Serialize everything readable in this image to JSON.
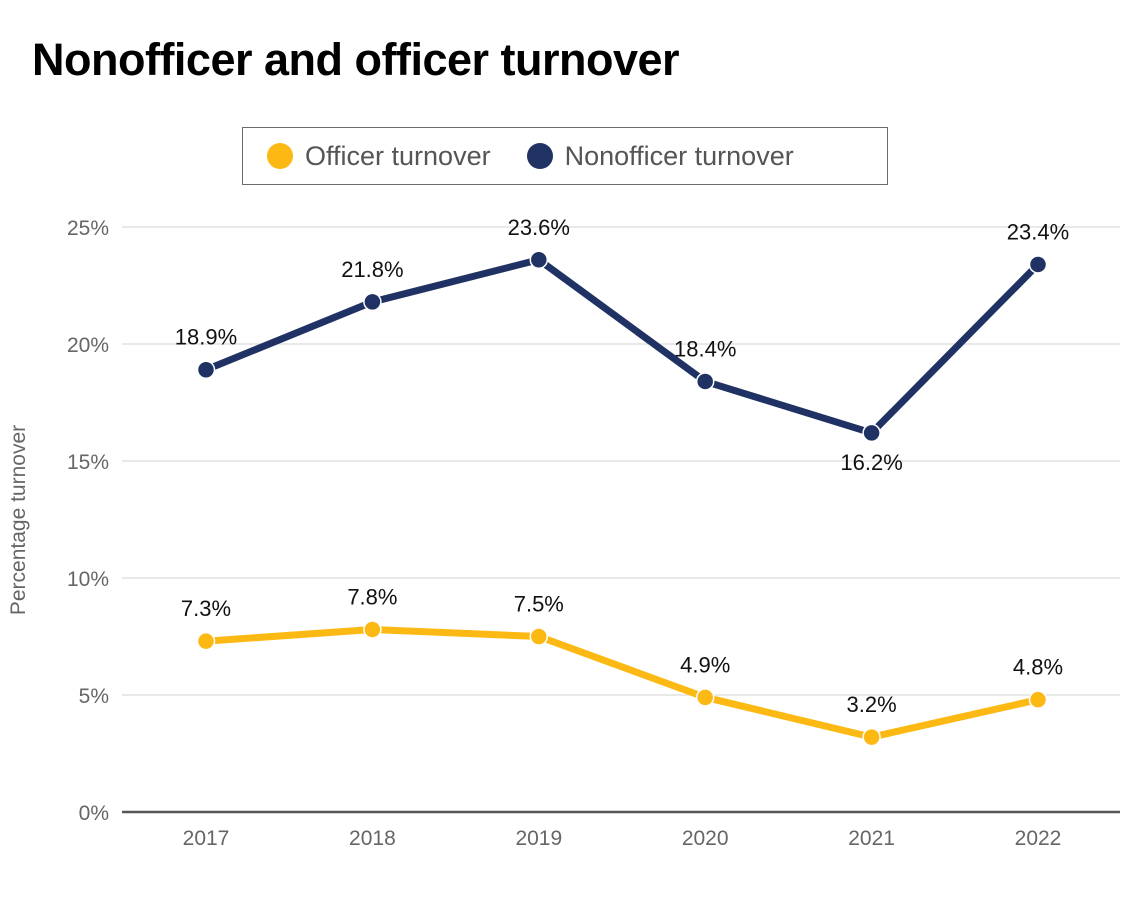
{
  "chart_data": {
    "type": "line",
    "title": "Nonofficer and officer turnover",
    "ylabel": "Percentage turnover",
    "xlabel": "",
    "categories": [
      "2017",
      "2018",
      "2019",
      "2020",
      "2021",
      "2022"
    ],
    "ylim": [
      0,
      25
    ],
    "yticks": [
      0,
      5,
      10,
      15,
      20,
      25
    ],
    "ytick_labels": [
      "0%",
      "5%",
      "10%",
      "15%",
      "20%",
      "25%"
    ],
    "grid": true,
    "legend_position": "top",
    "series": [
      {
        "name": "Officer turnover",
        "color": "#FDB913",
        "values": [
          7.3,
          7.8,
          7.5,
          4.9,
          3.2,
          4.8
        ],
        "labels": [
          "7.3%",
          "7.8%",
          "7.5%",
          "4.9%",
          "3.2%",
          "4.8%"
        ],
        "label_positions": [
          "above",
          "above",
          "above",
          "above",
          "above",
          "above"
        ]
      },
      {
        "name": "Nonofficer turnover",
        "color": "#1F3263",
        "values": [
          18.9,
          21.8,
          23.6,
          18.4,
          16.2,
          23.4
        ],
        "labels": [
          "18.9%",
          "21.8%",
          "23.6%",
          "18.4%",
          "16.2%",
          "23.4%"
        ],
        "label_positions": [
          "above",
          "above",
          "above",
          "above",
          "below",
          "above"
        ]
      }
    ]
  }
}
